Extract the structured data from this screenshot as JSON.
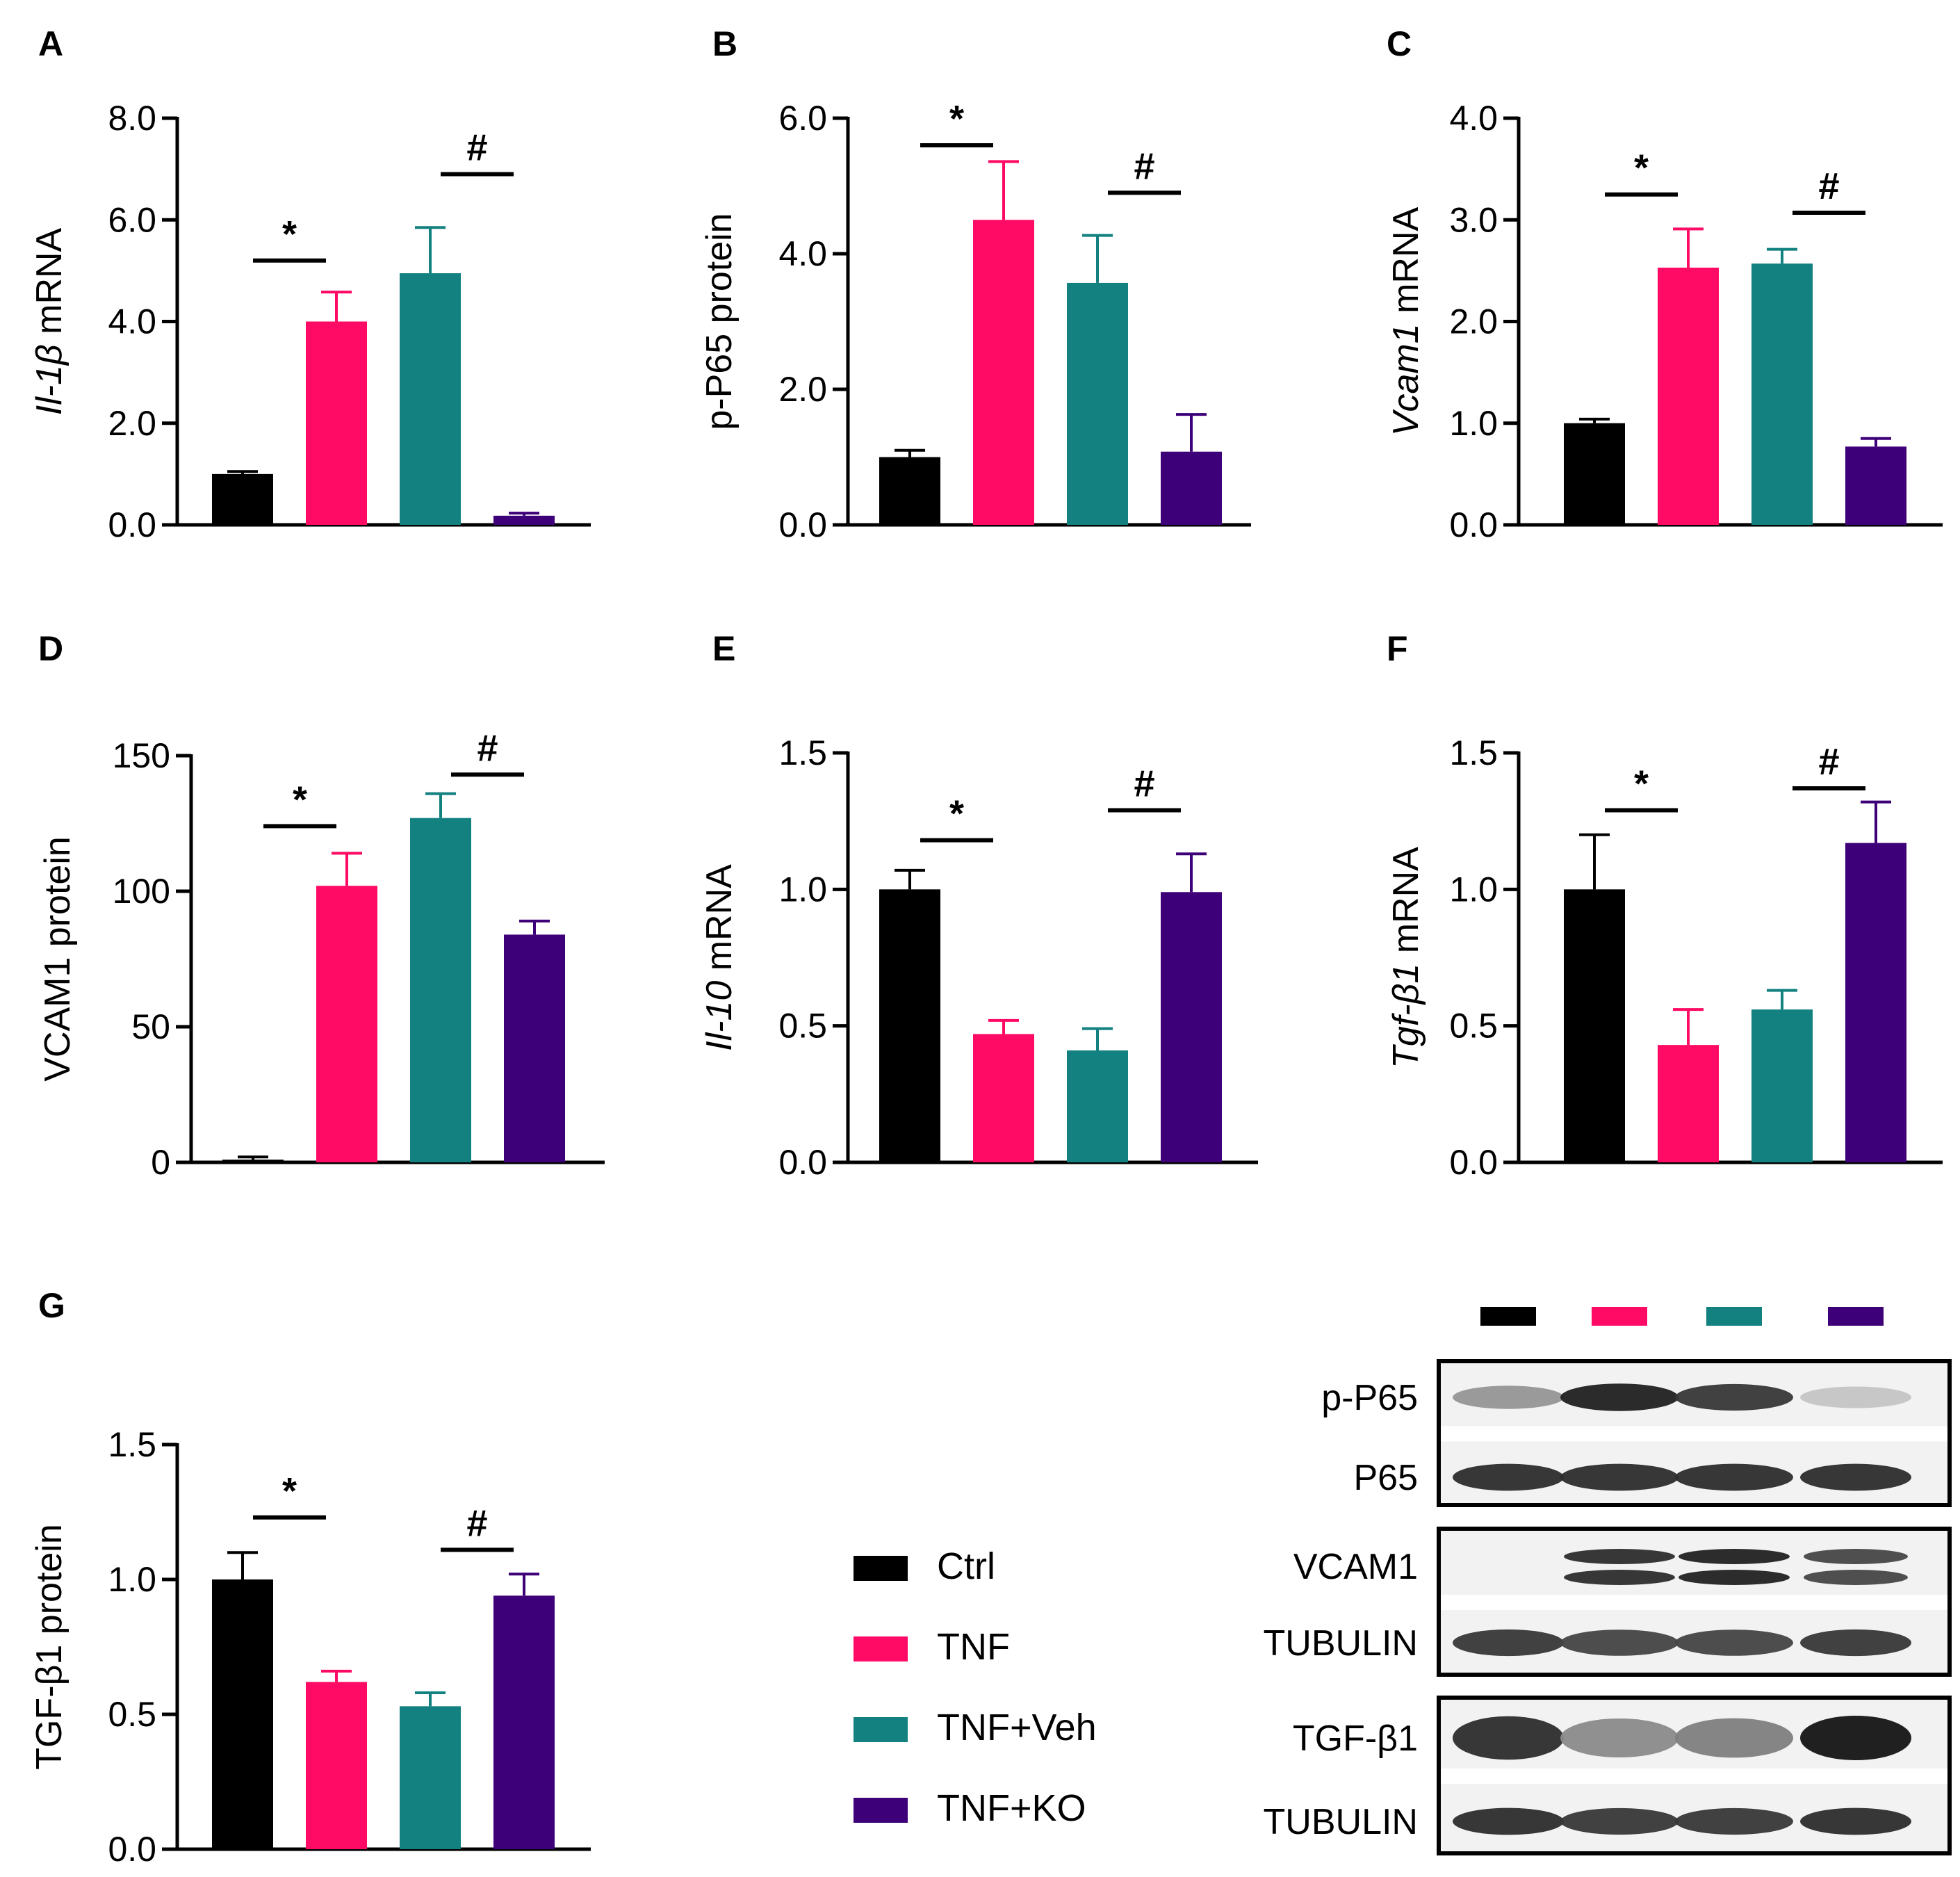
{
  "colors": {
    "ctrl": "#000000",
    "tnf": "#ff0a64",
    "veh": "#138180",
    "ko": "#3e0079"
  },
  "legend": [
    {
      "label": "Ctrl",
      "color": "#000000"
    },
    {
      "label": "TNF",
      "color": "#ff0a64"
    },
    {
      "label": "TNF+Veh",
      "color": "#138180"
    },
    {
      "label": "TNF+KO",
      "color": "#3e0079"
    }
  ],
  "chart_data": [
    {
      "panel": "A",
      "type": "bar",
      "title": "",
      "ylabel_italic": "Il-1β",
      "ylabel_rest": " mRNA",
      "categories": [
        "Ctrl",
        "TNF",
        "TNF+Veh",
        "TNF+KO"
      ],
      "values": [
        1.0,
        4.0,
        4.95,
        0.18
      ],
      "errors": [
        0.05,
        0.58,
        0.9,
        0.05
      ],
      "ylim": [
        0,
        8
      ],
      "yticks": [
        "0.0",
        "2.0",
        "4.0",
        "6.0",
        "8.0"
      ],
      "yticks_values": [
        0,
        2,
        4,
        6,
        8
      ],
      "sig": [
        {
          "symbol": "*",
          "between": [
            0,
            1
          ],
          "y": 5.2
        },
        {
          "symbol": "#",
          "between": [
            2,
            3
          ],
          "y": 6.9
        }
      ]
    },
    {
      "panel": "B",
      "type": "bar",
      "title": "",
      "ylabel_italic": "",
      "ylabel_rest": "p-P65 protein",
      "categories": [
        "Ctrl",
        "TNF",
        "TNF+Veh",
        "TNF+KO"
      ],
      "values": [
        1.0,
        4.5,
        3.57,
        1.08
      ],
      "errors": [
        0.1,
        0.86,
        0.7,
        0.55
      ],
      "ylim": [
        0,
        6
      ],
      "yticks": [
        "0.0",
        "2.0",
        "4.0",
        "6.0"
      ],
      "yticks_values": [
        0,
        2,
        4,
        6
      ],
      "sig": [
        {
          "symbol": "*",
          "between": [
            0,
            1
          ],
          "y": 5.6
        },
        {
          "symbol": "#",
          "between": [
            2,
            3
          ],
          "y": 4.9
        }
      ]
    },
    {
      "panel": "C",
      "type": "bar",
      "title": "",
      "ylabel_italic": "Vcam1",
      "ylabel_rest": " mRNA",
      "categories": [
        "Ctrl",
        "TNF",
        "TNF+Veh",
        "TNF+KO"
      ],
      "values": [
        1.0,
        2.53,
        2.57,
        0.77
      ],
      "errors": [
        0.04,
        0.38,
        0.14,
        0.08
      ],
      "ylim": [
        0,
        4
      ],
      "yticks": [
        "0.0",
        "1.0",
        "2.0",
        "3.0",
        "4.0"
      ],
      "yticks_values": [
        0,
        1,
        2,
        3,
        4
      ],
      "sig": [
        {
          "symbol": "*",
          "between": [
            0,
            1
          ],
          "y": 3.25
        },
        {
          "symbol": "#",
          "between": [
            2,
            3
          ],
          "y": 3.07
        }
      ]
    },
    {
      "panel": "D",
      "type": "bar",
      "title": "",
      "ylabel_italic": "",
      "ylabel_rest": "VCAM1 protein",
      "categories": [
        "Ctrl",
        "TNF",
        "TNF+Veh",
        "TNF+KO"
      ],
      "values": [
        1,
        102,
        127,
        84
      ],
      "errors": [
        1,
        12,
        9,
        5
      ],
      "ylim": [
        0,
        150
      ],
      "yticks": [
        "0",
        "50",
        "100",
        "150"
      ],
      "yticks_values": [
        0,
        50,
        100,
        150
      ],
      "sig": [
        {
          "symbol": "*",
          "between": [
            0,
            1
          ],
          "y": 124
        },
        {
          "symbol": "#",
          "between": [
            2,
            3
          ],
          "y": 143
        }
      ]
    },
    {
      "panel": "E",
      "type": "bar",
      "title": "",
      "ylabel_italic": "Il-10",
      "ylabel_rest": " mRNA",
      "categories": [
        "Ctrl",
        "TNF",
        "TNF+Veh",
        "TNF+KO"
      ],
      "values": [
        1.0,
        0.47,
        0.41,
        0.99
      ],
      "errors": [
        0.07,
        0.05,
        0.08,
        0.14
      ],
      "ylim": [
        0,
        1.5
      ],
      "yticks": [
        "0.0",
        "0.5",
        "1.0",
        "1.5"
      ],
      "yticks_values": [
        0,
        0.5,
        1.0,
        1.5
      ],
      "sig": [
        {
          "symbol": "*",
          "between": [
            0,
            1
          ],
          "y": 1.18
        },
        {
          "symbol": "#",
          "between": [
            2,
            3
          ],
          "y": 1.29
        }
      ]
    },
    {
      "panel": "F",
      "type": "bar",
      "title": "",
      "ylabel_italic": "Tgf-β1",
      "ylabel_rest": " mRNA",
      "categories": [
        "Ctrl",
        "TNF",
        "TNF+Veh",
        "TNF+KO"
      ],
      "values": [
        1.0,
        0.43,
        0.56,
        1.17
      ],
      "errors": [
        0.2,
        0.13,
        0.07,
        0.15
      ],
      "ylim": [
        0,
        1.5
      ],
      "yticks": [
        "0.0",
        "0.5",
        "1.0",
        "1.5"
      ],
      "yticks_values": [
        0,
        0.5,
        1.0,
        1.5
      ],
      "sig": [
        {
          "symbol": "*",
          "between": [
            0,
            1
          ],
          "y": 1.29
        },
        {
          "symbol": "#",
          "between": [
            2,
            3
          ],
          "y": 1.37
        }
      ]
    },
    {
      "panel": "G",
      "type": "bar",
      "title": "",
      "ylabel_italic": "",
      "ylabel_rest": "TGF-β1 protein",
      "categories": [
        "Ctrl",
        "TNF",
        "TNF+Veh",
        "TNF+KO"
      ],
      "values": [
        1.0,
        0.62,
        0.53,
        0.94
      ],
      "errors": [
        0.1,
        0.04,
        0.05,
        0.08
      ],
      "ylim": [
        0,
        1.5
      ],
      "yticks": [
        "0.0",
        "0.5",
        "1.0",
        "1.5"
      ],
      "yticks_values": [
        0,
        0.5,
        1.0,
        1.5
      ],
      "sig": [
        {
          "symbol": "*",
          "between": [
            0,
            1
          ],
          "y": 1.23
        },
        {
          "symbol": "#",
          "between": [
            2,
            3
          ],
          "y": 1.11
        }
      ]
    }
  ],
  "blot": {
    "lane_groups": [
      "Ctrl",
      "TNF",
      "TNF+Veh",
      "TNF+KO"
    ],
    "rows": [
      {
        "label": "p-P65",
        "intensity": [
          0.45,
          0.95,
          0.85,
          0.25
        ]
      },
      {
        "label": "P65",
        "intensity": [
          0.9,
          0.9,
          0.9,
          0.9
        ]
      },
      {
        "label": "VCAM1",
        "intensity": [
          0.03,
          0.85,
          0.9,
          0.75
        ]
      },
      {
        "label": "TUBULIN",
        "intensity": [
          0.85,
          0.8,
          0.8,
          0.85
        ]
      },
      {
        "label": "TGF-β1",
        "intensity": [
          0.9,
          0.5,
          0.55,
          1.0
        ]
      },
      {
        "label": "TUBULIN",
        "intensity": [
          0.9,
          0.85,
          0.85,
          0.9
        ]
      }
    ]
  }
}
